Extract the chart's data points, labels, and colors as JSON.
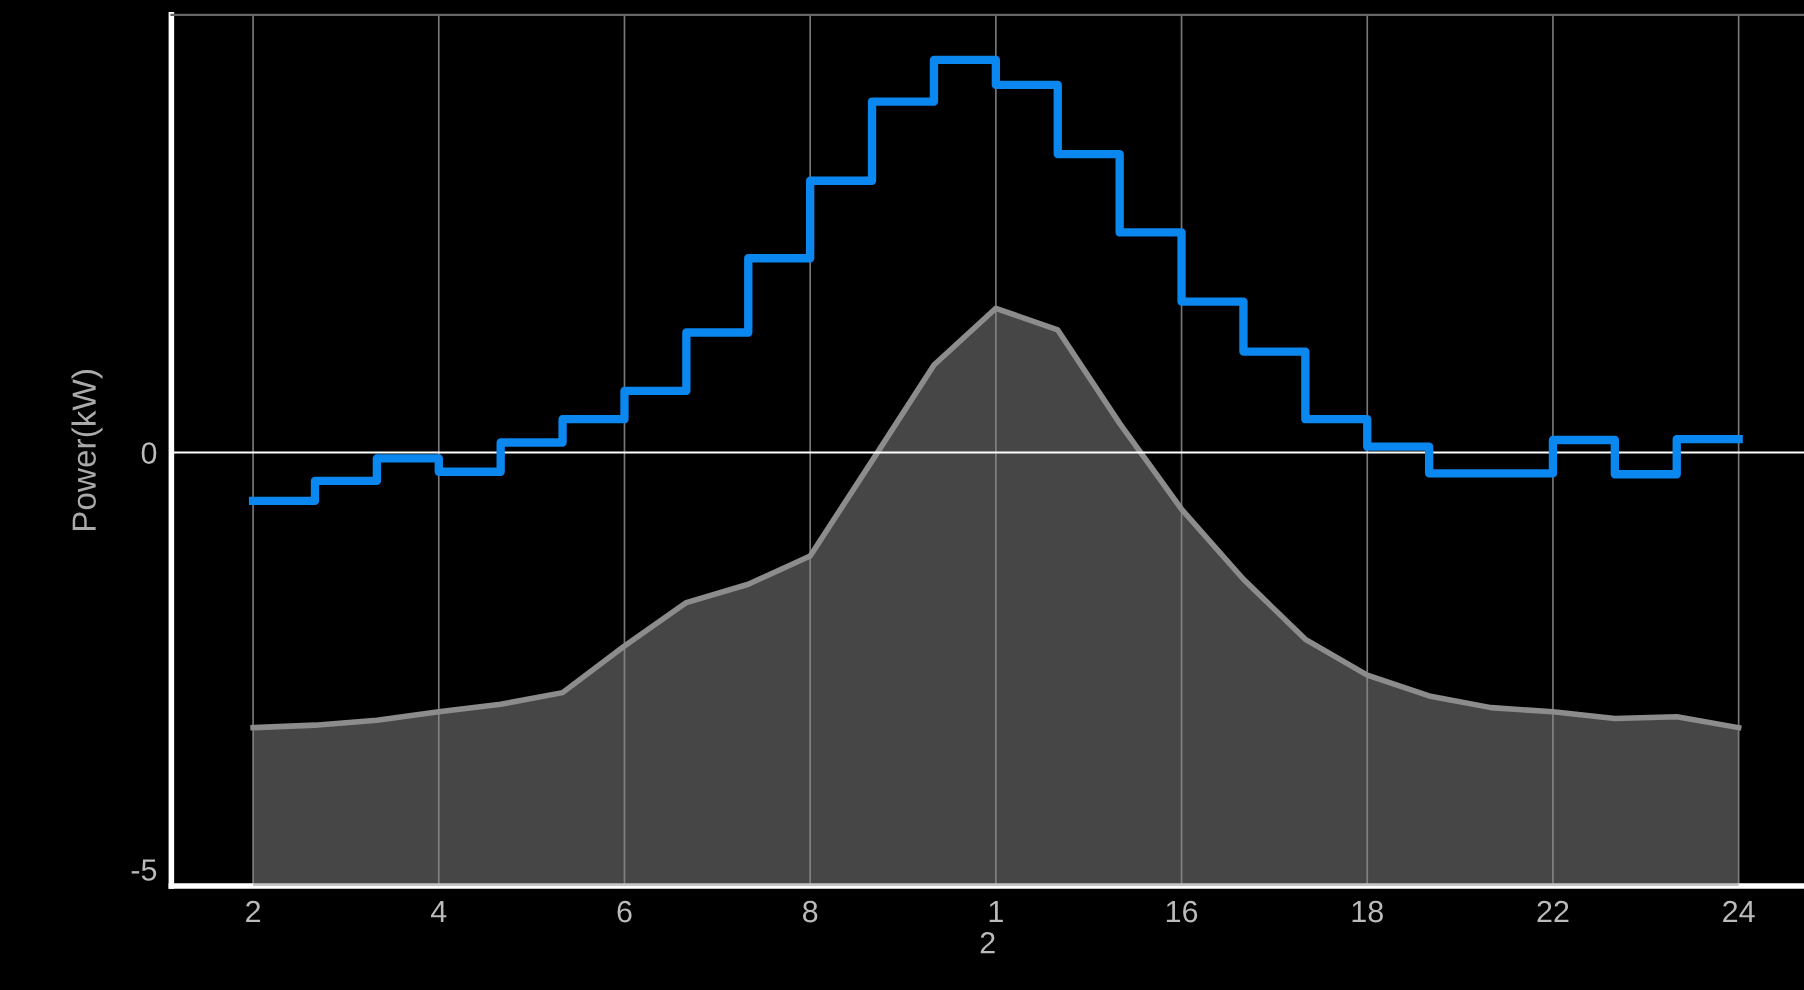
{
  "chart_data": {
    "type": "step",
    "ylabel": "Power(kW)",
    "xlabel": "2",
    "categories": [
      "2",
      null,
      null,
      "4",
      null,
      null,
      "6",
      null,
      null,
      "8",
      null,
      null,
      "1",
      null,
      null,
      "16",
      null,
      null,
      "18",
      null,
      null,
      "22",
      null,
      null,
      "24"
    ],
    "ylim": [
      -5.2,
      5.25
    ],
    "yticks": [
      -5,
      0
    ],
    "grid": "x",
    "ref_lines": [
      {
        "axis": "y",
        "value": 0,
        "label": null,
        "color": "#ffffff"
      }
    ],
    "series": [
      {
        "type": "area",
        "color": "#8c8c8c",
        "values": [
          -3.3,
          -3.27,
          -3.21,
          -3.11,
          -3.02,
          -2.88,
          -2.32,
          -1.8,
          -1.58,
          -1.24,
          -0.1,
          1.05,
          1.73,
          1.47,
          0.35,
          -0.68,
          -1.52,
          -2.24,
          -2.67,
          -2.92,
          -3.06,
          -3.11,
          -3.19,
          -3.17,
          -3.3
        ]
      },
      {
        "color": "#0b87f0",
        "values": [
          -0.58,
          -0.34,
          -0.07,
          -0.23,
          0.12,
          0.4,
          0.74,
          1.44,
          2.33,
          3.26,
          4.21,
          4.71,
          4.41,
          3.58,
          2.64,
          1.81,
          1.21,
          0.4,
          0.07,
          -0.25,
          -0.25,
          0.15,
          -0.26,
          0.16,
          0.16
        ]
      }
    ]
  }
}
